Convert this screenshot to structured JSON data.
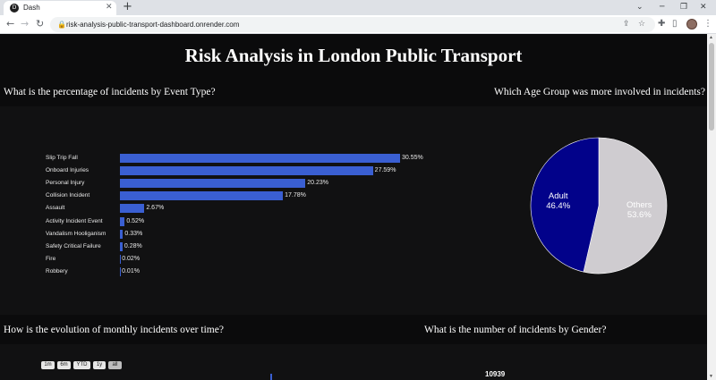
{
  "browser": {
    "tab_title": "Dash",
    "favicon_text": "D",
    "new_tab": "+",
    "url": "risk-analysis-public-transport-dashboard.onrender.com"
  },
  "page": {
    "title": "Risk Analysis in London Public Transport",
    "questions": {
      "event_type": "What is the percentage of incidents by Event Type?",
      "age_group": "Which Age Group was more involved in incidents?",
      "monthly": "How is the evolution of monthly incidents over time?",
      "gender": "What is the number of incidents by Gender?"
    },
    "range_buttons": [
      "1m",
      "6m",
      "YTD",
      "1y",
      "all"
    ],
    "gender_value": "10939"
  },
  "chart_data": [
    {
      "type": "bar",
      "orientation": "horizontal",
      "categories": [
        "Slip Trip Fall",
        "Onboard Injuries",
        "Personal Injury",
        "Collision Incident",
        "Assault",
        "Activity Incident Event",
        "Vandalism Hooliganism",
        "Safety Critical Failure",
        "Fire",
        "Robbery"
      ],
      "values": [
        30.55,
        27.59,
        20.23,
        17.78,
        2.67,
        0.52,
        0.33,
        0.28,
        0.02,
        0.01
      ],
      "value_labels": [
        "30.55%",
        "27.59%",
        "20.23%",
        "17.78%",
        "2.67%",
        "0.52%",
        "0.33%",
        "0.28%",
        "0.02%",
        "0.01%"
      ],
      "color": "#3a5fd2"
    },
    {
      "type": "pie",
      "slices": [
        {
          "label": "Others",
          "value": 53.6,
          "text": "53.6%",
          "color": "#cfccd0"
        },
        {
          "label": "Adult",
          "value": 46.4,
          "text": "46.4%",
          "color": "#02028a"
        }
      ]
    }
  ]
}
